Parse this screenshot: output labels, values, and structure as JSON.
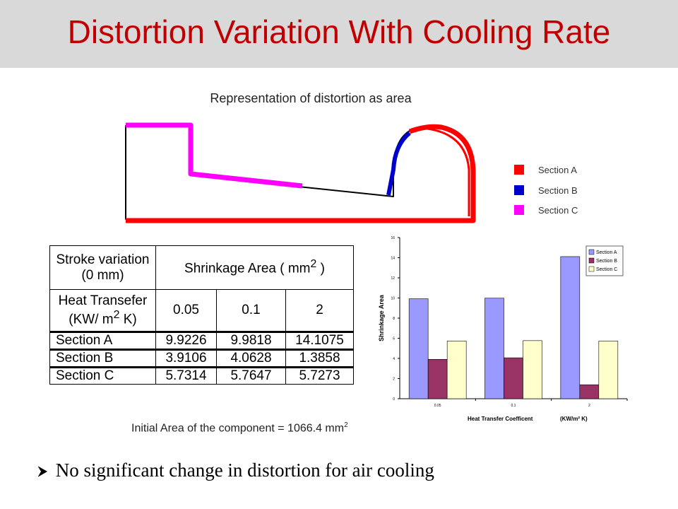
{
  "slide": {
    "title": "Distortion Variation With Cooling Rate",
    "diagram_caption": "Representation of distortion as area",
    "legend": [
      {
        "label": "Section A",
        "color": "#ff0000"
      },
      {
        "label": "Section B",
        "color": "#0000cc"
      },
      {
        "label": "Section C",
        "color": "#ff00ff"
      }
    ],
    "table": {
      "header1_col1_line1": "Stroke variation",
      "header1_col1_line2": "(0 mm)",
      "header1_col2": "Shrinkage Area ( mm",
      "header1_col2_sup": "2",
      "header1_col2_close": " )",
      "header2_col1_line1": "Heat Transefer",
      "header2_col1_line2a": "(KW/ m",
      "header2_col1_sup": "2",
      "header2_col1_line2b": " K)",
      "coefficients": [
        "0.05",
        "0.1",
        "2"
      ],
      "rows": [
        {
          "section": "Section A",
          "values": [
            "9.9226",
            "9.9818",
            "14.1075"
          ]
        },
        {
          "section": "Section B",
          "values": [
            "3.9106",
            "4.0628",
            "1.3858"
          ]
        },
        {
          "section": "Section C",
          "values": [
            "5.7314",
            "5.7647",
            "5.7273"
          ]
        }
      ]
    },
    "initial_area_label": "Initial Area of the component =",
    "initial_area_value": "1066.4 mm",
    "initial_area_sup": "2",
    "conclusion": "No significant change in distortion for air cooling",
    "bullet_icon": "arrow-bullet-icon"
  },
  "chart_data": {
    "type": "bar",
    "categories": [
      "0.05",
      "0.1",
      "2"
    ],
    "series": [
      {
        "name": "Section A",
        "color": "#9999ff",
        "values": [
          9.9226,
          9.9818,
          14.1075
        ]
      },
      {
        "name": "Section B",
        "color": "#993366",
        "values": [
          3.9106,
          4.0628,
          1.3858
        ]
      },
      {
        "name": "Section C",
        "color": "#ffffcc",
        "values": [
          5.7314,
          5.7647,
          5.7273
        ]
      }
    ],
    "ylabel": "Shrinkage Area",
    "xlabel": "Heat Transfer Coefficent",
    "xlabel_unit": "(KW/m² K)",
    "ylim": [
      0,
      16
    ],
    "yticks": [
      "0",
      "2",
      "4",
      "6",
      "8",
      "10",
      "12",
      "14",
      "16"
    ],
    "legend_position": "top-right",
    "grid": false
  }
}
